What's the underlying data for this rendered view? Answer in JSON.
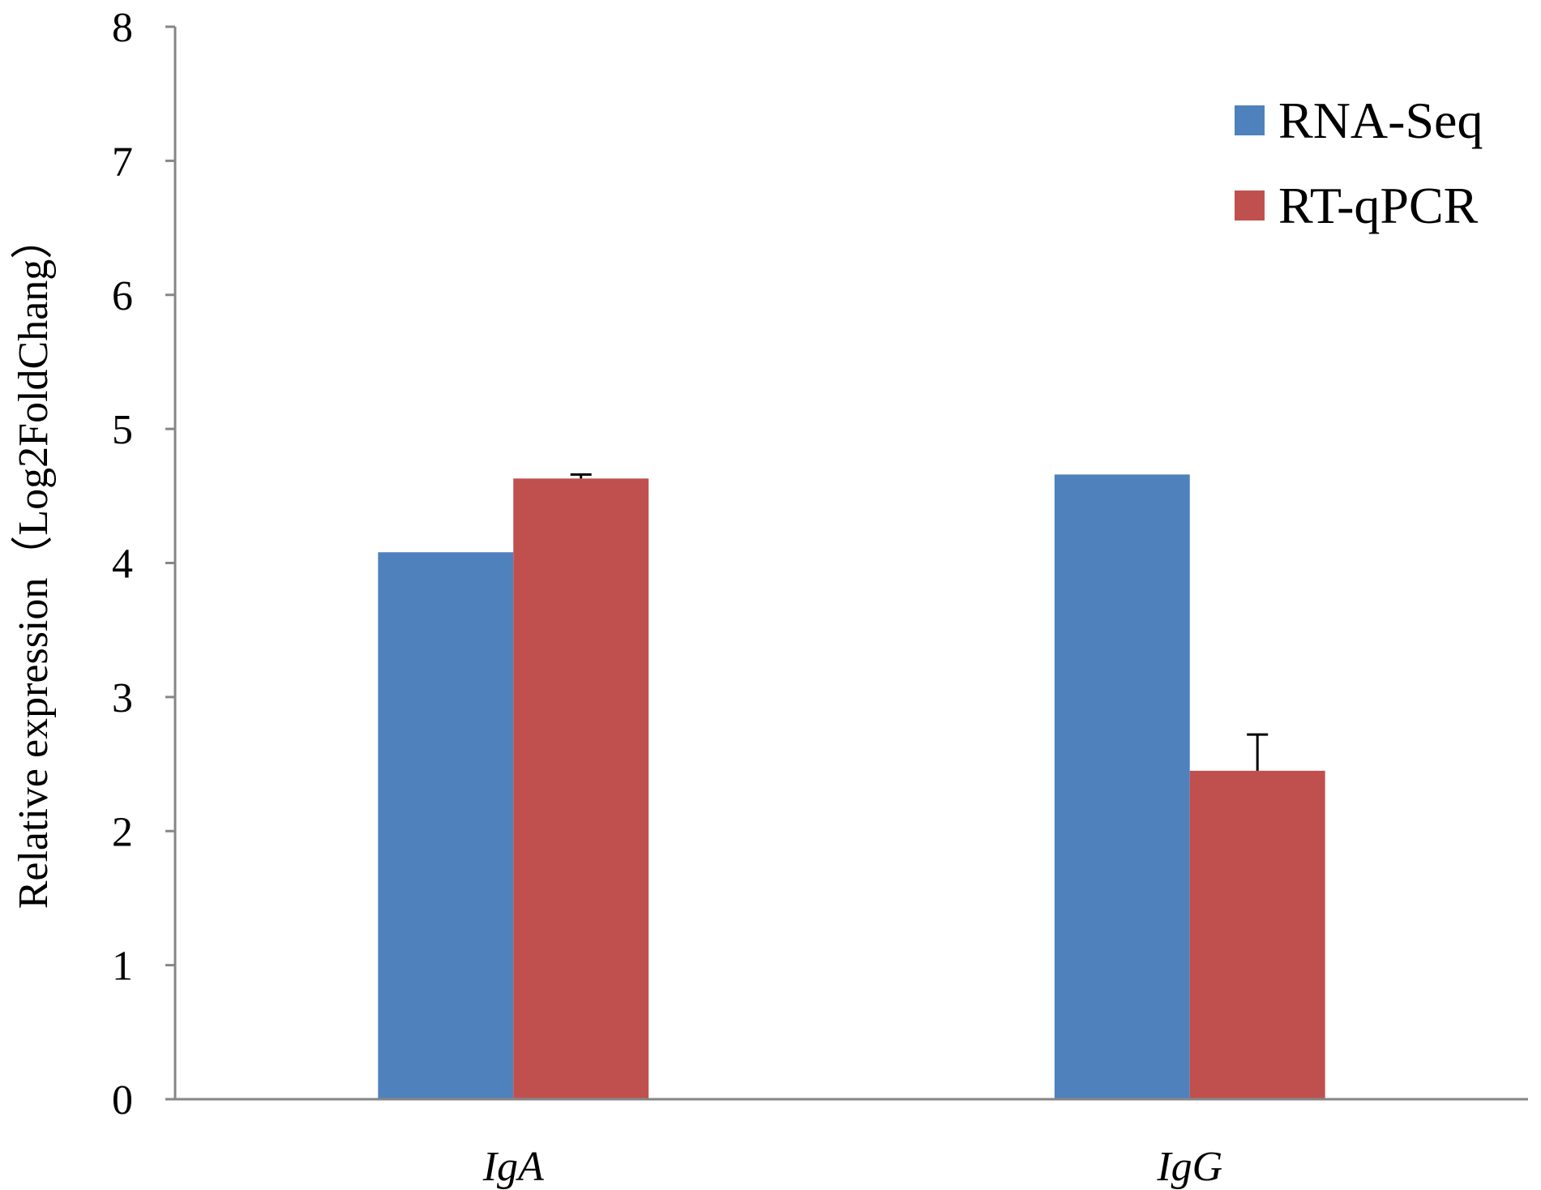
{
  "chart_data": {
    "type": "bar",
    "title": "",
    "xlabel": "",
    "ylabel": "Relative expression（Log2FoldChang）",
    "ylim": [
      0,
      8
    ],
    "yticks": [
      "0",
      "1",
      "2",
      "3",
      "4",
      "5",
      "6",
      "7",
      "8"
    ],
    "categories": [
      "IgA",
      "IgG"
    ],
    "series": [
      {
        "name": "RNA-Seq",
        "color": "#4F81BD",
        "values": [
          4.08,
          4.66
        ],
        "errors": [
          null,
          null
        ]
      },
      {
        "name": "RT-qPCR",
        "color": "#C0504D",
        "values": [
          4.63,
          2.45
        ],
        "errors": [
          0.03,
          0.27
        ]
      }
    ],
    "grid": false,
    "legend": "top-right"
  }
}
